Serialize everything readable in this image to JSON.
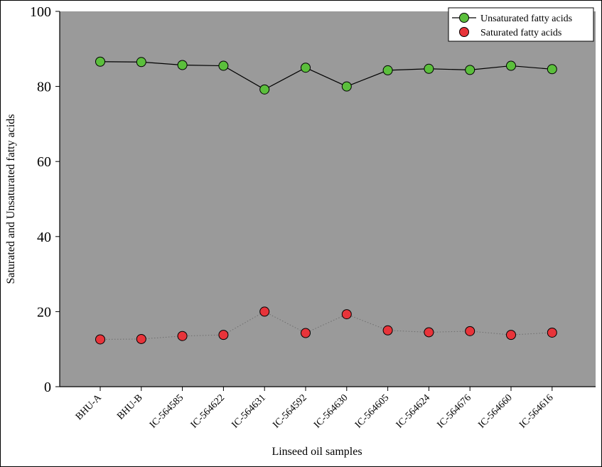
{
  "chart_data": {
    "type": "line",
    "xlabel": "Linseed oil samples",
    "ylabel": "Saturated and Unsaturated fatty acids",
    "ylim": [
      0,
      100
    ],
    "yticks": [
      0,
      20,
      40,
      60,
      80,
      100
    ],
    "categories": [
      "BHU-A",
      "BHU-B",
      "IC-564585",
      "IC-564622",
      "IC-564631",
      "IC-564592",
      "IC-564630",
      "IC-564605",
      "IC-564624",
      "IC-564676",
      "IC-564660",
      "IC-564616"
    ],
    "series": [
      {
        "name": "Unsaturated fatty acids",
        "values": [
          86.6,
          86.5,
          85.7,
          85.5,
          79.2,
          85.0,
          80.0,
          84.3,
          84.7,
          84.4,
          85.5,
          84.6
        ],
        "color": "#5bbf3c",
        "line": "solid"
      },
      {
        "name": "Saturated fatty acids",
        "values": [
          12.6,
          12.7,
          13.5,
          13.8,
          20.0,
          14.3,
          19.3,
          15.0,
          14.5,
          14.8,
          13.8,
          14.4
        ],
        "color": "#e8343a",
        "line": "dotted"
      }
    ],
    "grid": false,
    "legend": "top-right",
    "plot_background": "#9a9a9a"
  }
}
